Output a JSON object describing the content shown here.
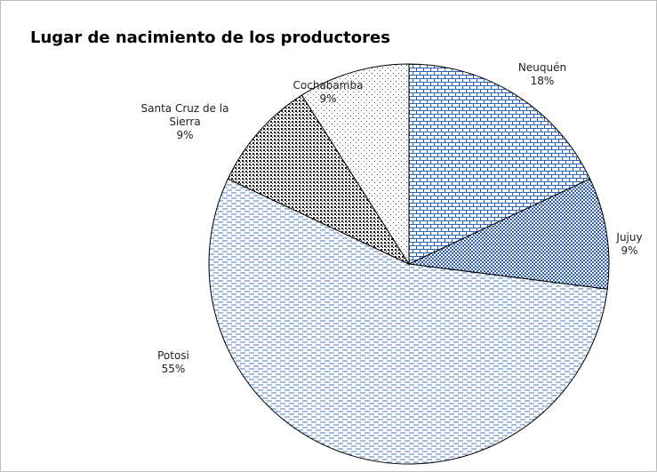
{
  "chart_data": {
    "type": "pie",
    "title": "Lugar de nacimiento de los productores",
    "categories": [
      "Neuquén",
      "Jujuy",
      "Potosi",
      "Santa Cruz de la Sierra",
      "Cochabamba"
    ],
    "values": [
      18,
      9,
      55,
      9,
      9
    ],
    "value_labels": [
      "18%",
      "9%",
      "55%",
      "9%",
      "9%"
    ],
    "colors": [
      "#2e62b0",
      "#2e62b0",
      "#4a78c0",
      "#000000",
      "#555555"
    ]
  }
}
